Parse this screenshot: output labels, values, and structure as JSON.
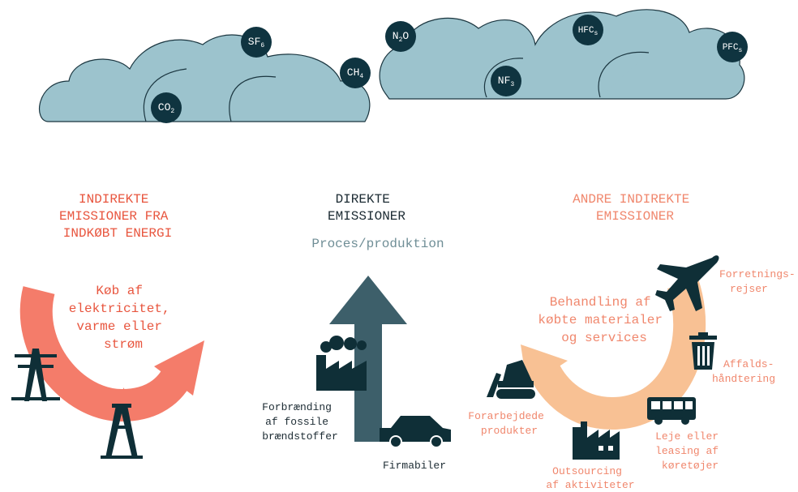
{
  "gases": [
    {
      "base": "CO",
      "sub": "2"
    },
    {
      "base": "SF",
      "sub": "6"
    },
    {
      "base": "CH",
      "sub": "4"
    },
    {
      "base": "N",
      "sub": "2",
      "tail": "O"
    },
    {
      "base": "NF",
      "sub": "3"
    },
    {
      "base": "HFC",
      "sub": "s"
    },
    {
      "base": "PFC",
      "sub": "s"
    }
  ],
  "sections": [
    {
      "title_lines": [
        "INDIREKTE",
        "EMISSIONER FRA",
        "INDKØBT ENERGI"
      ],
      "arrow_label_lines": [
        "Køb af",
        "elektricitet,",
        "varme eller",
        "strøm"
      ]
    },
    {
      "title_lines": [
        "DIREKTE",
        "EMISSIONER"
      ],
      "subtitle": "Proces/produktion",
      "items": [
        {
          "lines": [
            "Forbrænding",
            "af fossile",
            "brændstoffer"
          ]
        },
        {
          "lines": [
            "Firmabiler"
          ]
        }
      ]
    },
    {
      "title_lines": [
        "ANDRE INDIREKTE",
        "EMISSIONER"
      ],
      "arrow_label_lines": [
        "Behandling af",
        "købte materialer",
        "og services"
      ],
      "items": [
        {
          "lines": [
            "Forretnings-",
            "rejser"
          ]
        },
        {
          "lines": [
            "Affalds-",
            "håndtering"
          ]
        },
        {
          "lines": [
            "Leje eller",
            "leasing af",
            "køretøjer"
          ]
        },
        {
          "lines": [
            "Outsourcing",
            "af aktiviteter"
          ]
        },
        {
          "lines": [
            "Forarbejdede",
            "produkter"
          ]
        }
      ]
    }
  ]
}
